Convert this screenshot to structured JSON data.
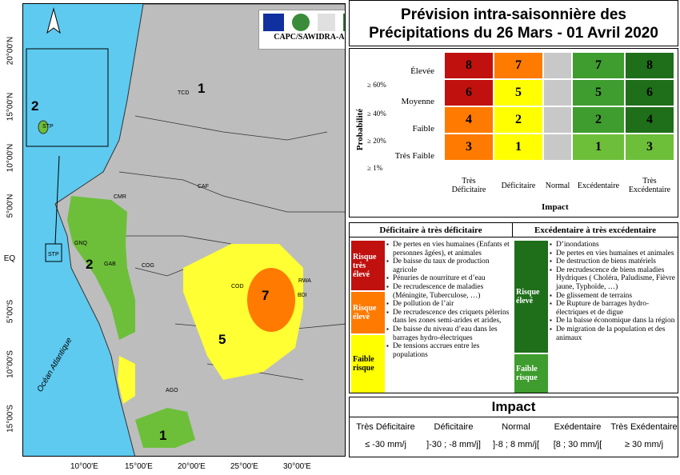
{
  "map": {
    "lat_labels": [
      "20°00'N",
      "15°00'N",
      "10°00'N",
      "5°00'N",
      "EQ",
      "5°00'S",
      "10°00'S",
      "15°00'S"
    ],
    "lon_labels": [
      "10°00'E",
      "15°00'E",
      "20°00'E",
      "25°00'E",
      "30°00'E"
    ],
    "ocean_label": "Océan Atlantique",
    "logo_caption": "CAPC/SAWIDRA-AC",
    "inset_zone": "2",
    "inset_country": "STP",
    "country_labels": [
      "TCD",
      "CMR",
      "CAF",
      "GNQ",
      "STP",
      "GAB",
      "COG",
      "COD",
      "RWA",
      "BDI",
      "AGO"
    ],
    "zone_labels": [
      "1",
      "2",
      "7",
      "5",
      "1"
    ]
  },
  "title": {
    "line1": "Prévision intra-saisonnière des",
    "line2": "Précipitations du 26 Mars - 01 Avril 2020"
  },
  "matrix": {
    "y_axis": "Probabilité",
    "x_axis": "Impact",
    "rows": [
      "Élevée",
      "Moyenne",
      "Faible",
      "Très Faible"
    ],
    "thresholds": [
      "≥ 60%",
      "≥ 40%",
      "≥ 20%",
      "≥ 1%"
    ],
    "columns": [
      "Très Déficitaire",
      "Déficitaire",
      "Normal",
      "Excédentaire",
      "Très Excédentaire"
    ],
    "values": [
      [
        "8",
        "7",
        "",
        "7",
        "8"
      ],
      [
        "6",
        "5",
        "",
        "5",
        "6"
      ],
      [
        "4",
        "2",
        "",
        "2",
        "4"
      ],
      [
        "3",
        "1",
        "",
        "1",
        "3"
      ]
    ],
    "colors": [
      [
        "#c0110f",
        "#ff7a00",
        "#c8c8c8",
        "#3f9c2e",
        "#1f6e1a"
      ],
      [
        "#c0110f",
        "#ffff00",
        "#c8c8c8",
        "#3f9c2e",
        "#1f6e1a"
      ],
      [
        "#ff7a00",
        "#ffff00",
        "#c8c8c8",
        "#3f9c2e",
        "#1f6e1a"
      ],
      [
        "#ff7a00",
        "#ffff00",
        "#c8c8c8",
        "#6dbf3a",
        "#6dbf3a"
      ]
    ]
  },
  "legend": {
    "left_head": "Déficitaire à très déficitaire",
    "right_head": "Excédentaire à très excédentaire",
    "left_risks": [
      {
        "label": "Risque très élevé",
        "color": "#c0110f",
        "items": [
          "De pertes en vies humaines (Enfants et personnes âgées), et animales",
          "De baisse du taux de production agricole",
          "Pénuries de nourriture et d’eau"
        ]
      },
      {
        "label": "Risque élevé",
        "color": "#ff7a00",
        "items": [
          "De recrudescence de maladies (Méningite, Tuberculose, …)",
          "De pollution de l’air"
        ]
      },
      {
        "label": "Faible risque",
        "color": "#ffff00",
        "items": [
          "De recrudescence des criquets pèlerins dans les zones semi-arides et arides,",
          "De baisse du niveau d’eau dans les barrages hydro-électriques",
          "De tensions accrues entre les populations"
        ]
      }
    ],
    "right_risks": [
      {
        "label": "Risque élevé",
        "color": "#1f6e1a",
        "items": [
          "D’inondations",
          "De pertes en vies humaines et animales",
          "De destruction de biens matériels",
          "De recrudescence de biens maladies Hydriques ( Choléra, Paludisme, Fièvre jaune, Typhoïde, …)",
          "De glissement de terrains",
          "De Rupture de barrages hydro-électriques et de digue"
        ]
      },
      {
        "label": "Faible risque",
        "color": "#3f9c2e",
        "items": [
          "De la baisse économique dans la région",
          "De  migration de la population et des animaux"
        ]
      }
    ]
  },
  "impact": {
    "title": "Impact",
    "columns": [
      {
        "name": "Très Déficitaire",
        "range": "≤ -30 mm/j"
      },
      {
        "name": "Déficitaire",
        "range": "]-30 ; -8 mm/j]"
      },
      {
        "name": "Normal",
        "range": "]-8 ; 8 mm/j["
      },
      {
        "name": "Exédentaire",
        "range": "[8 ; 30 mm/j["
      },
      {
        "name": "Très Exédentaire",
        "range": "≥ 30 mm/j"
      }
    ]
  }
}
